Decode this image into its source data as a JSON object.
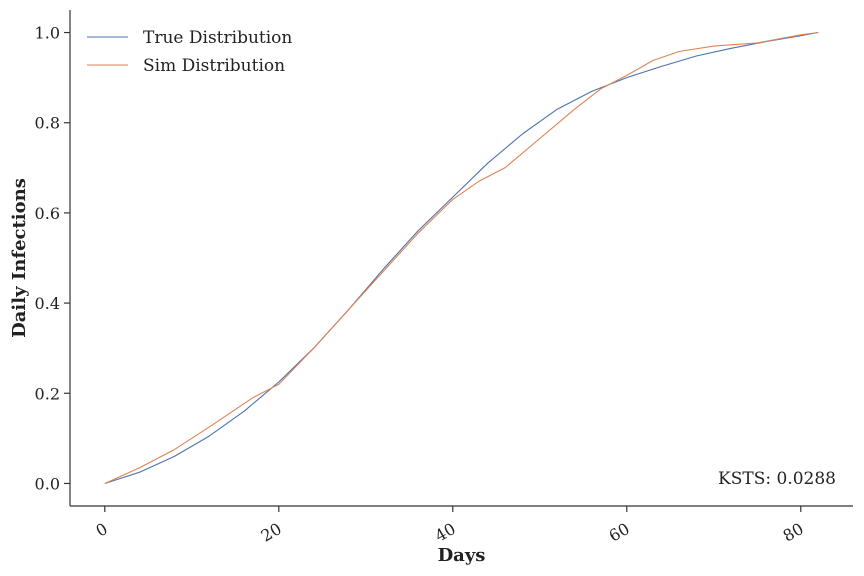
{
  "chart_data": {
    "type": "line",
    "xlabel": "Days",
    "ylabel": "Daily Infections",
    "xlim": [
      -4,
      86
    ],
    "ylim": [
      -0.05,
      1.05
    ],
    "xticks": [
      "0",
      "20",
      "40",
      "60",
      "80"
    ],
    "yticks": [
      "0.0",
      "0.2",
      "0.4",
      "0.6",
      "0.8",
      "1.0"
    ],
    "grid": false,
    "legend_position": "top-left",
    "series": [
      {
        "name": "True Distribution",
        "color": "#4c72b0",
        "x": [
          0,
          4,
          8,
          12,
          16,
          20,
          24,
          28,
          32,
          36,
          40,
          44,
          48,
          52,
          56,
          60,
          64,
          68,
          72,
          76,
          80,
          82
        ],
        "y": [
          0.0,
          0.025,
          0.06,
          0.105,
          0.16,
          0.225,
          0.3,
          0.385,
          0.475,
          0.56,
          0.635,
          0.71,
          0.775,
          0.83,
          0.87,
          0.9,
          0.925,
          0.948,
          0.965,
          0.98,
          0.993,
          1.0
        ]
      },
      {
        "name": "Sim Distribution",
        "color": "#dd8452",
        "x": [
          0,
          4,
          8,
          12,
          17,
          20,
          24,
          28,
          32,
          36,
          40,
          43,
          46,
          50,
          54,
          57,
          60,
          63,
          66,
          70,
          75,
          80,
          82
        ],
        "y": [
          0.0,
          0.035,
          0.075,
          0.125,
          0.19,
          0.22,
          0.3,
          0.385,
          0.47,
          0.555,
          0.63,
          0.67,
          0.7,
          0.765,
          0.83,
          0.875,
          0.905,
          0.938,
          0.958,
          0.97,
          0.977,
          0.995,
          1.0
        ]
      }
    ],
    "annotations": [
      {
        "text": "KSTS: 0.0288",
        "position": "bottom-right"
      }
    ]
  }
}
